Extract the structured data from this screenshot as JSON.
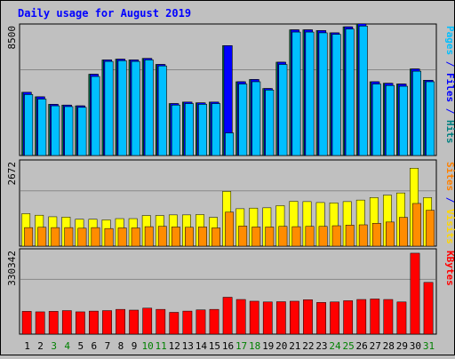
{
  "chart_data": {
    "type": "bar",
    "title": "Daily usage for August 2019",
    "days": [
      "1",
      "2",
      "3",
      "4",
      "5",
      "6",
      "7",
      "8",
      "9",
      "10",
      "11",
      "12",
      "13",
      "14",
      "15",
      "16",
      "17",
      "18",
      "19",
      "20",
      "21",
      "22",
      "23",
      "24",
      "25",
      "26",
      "27",
      "28",
      "29",
      "30",
      "31"
    ],
    "weekend_days": [
      "3",
      "4",
      "10",
      "11",
      "17",
      "18",
      "24",
      "25",
      "31"
    ],
    "panels": [
      {
        "name": "hits-files-pages",
        "ymax": 8500,
        "ymax_label": "8500",
        "side_labels": [
          {
            "text": "Pages",
            "color": "#00bfff"
          },
          {
            "text": " / ",
            "color": "#0000ff"
          },
          {
            "text": "Files",
            "color": "#0000ff"
          },
          {
            "text": " / ",
            "color": "#0000ff"
          },
          {
            "text": "Hits",
            "color": "#008080"
          }
        ],
        "series": [
          {
            "name": "Hits",
            "color": "#008040",
            "values": [
              4200,
              3900,
              3400,
              3350,
              3300,
              5400,
              6350,
              6400,
              6350,
              6450,
              6050,
              3450,
              3550,
              3500,
              3550,
              7300,
              4900,
              5050,
              4450,
              6200,
              8350,
              8350,
              8300,
              8150,
              8550,
              8750,
              4900,
              4800,
              4750,
              5750,
              5000
            ]
          },
          {
            "name": "Files",
            "color": "#0000ff",
            "values": [
              4200,
              3900,
              3400,
              3350,
              3300,
              5400,
              6350,
              6400,
              6350,
              6450,
              6050,
              3450,
              3550,
              3500,
              3550,
              7300,
              4900,
              5050,
              4450,
              6200,
              8350,
              8350,
              8300,
              8150,
              8550,
              8750,
              4900,
              4800,
              4750,
              5750,
              5000
            ]
          },
          {
            "name": "Pages",
            "color": "#00bfff",
            "values": [
              4050,
              3750,
              3300,
              3250,
              3200,
              5250,
              6250,
              6300,
              6250,
              6350,
              5950,
              3350,
              3450,
              3400,
              3450,
              1500,
              4750,
              4900,
              4350,
              6050,
              8200,
              8200,
              8150,
              8050,
              8400,
              8600,
              4750,
              4650,
              4600,
              5600,
              4900
            ]
          }
        ]
      },
      {
        "name": "visits-sites",
        "ymax": 2672,
        "ymax_label": "2672",
        "side_labels": [
          {
            "text": "Sites",
            "color": "#ff8000"
          },
          {
            "text": " / ",
            "color": "#0000ff"
          },
          {
            "text": "Visits",
            "color": "#ffd700"
          }
        ],
        "series": [
          {
            "name": "Visits",
            "color": "#ffff00",
            "values": [
              1050,
              1000,
              950,
              940,
              870,
              870,
              850,
              890,
              890,
              990,
              990,
              1010,
              1010,
              1020,
              930,
              1770,
              1210,
              1230,
              1240,
              1310,
              1450,
              1440,
              1410,
              1400,
              1440,
              1490,
              1570,
              1650,
              1720,
              2520,
              1570
            ]
          },
          {
            "name": "Sites",
            "color": "#ff8c00",
            "values": [
              600,
              610,
              600,
              600,
              580,
              600,
              570,
              590,
              590,
              630,
              640,
              620,
              610,
              620,
              590,
              1100,
              650,
              620,
              620,
              640,
              630,
              640,
              640,
              660,
              680,
              690,
              740,
              780,
              930,
              1380,
              1160
            ]
          }
        ]
      },
      {
        "name": "kbytes",
        "ymax": 330342,
        "ymax_label": "330342",
        "side_labels": [
          {
            "text": "KBytes",
            "color": "#ff0000"
          }
        ],
        "series": [
          {
            "name": "KBytes",
            "color": "#ff0000",
            "values": [
              92000,
              90000,
              92000,
              95000,
              90000,
              93000,
              95000,
              100000,
              97000,
              105000,
              100000,
              88000,
              93000,
              98000,
              100000,
              149000,
              140000,
              133000,
              130000,
              131000,
              133000,
              139000,
              128000,
              130000,
              135000,
              140000,
              142000,
              140000,
              130000,
              327000,
              209000
            ]
          }
        ]
      }
    ]
  },
  "colors": {
    "background": "#c0c0c0",
    "panel_fill": "#c0c0c0",
    "title": "#0000ff",
    "day_label": "#000000",
    "weekend_day_label": "#008000",
    "outer_border": "#000000"
  }
}
